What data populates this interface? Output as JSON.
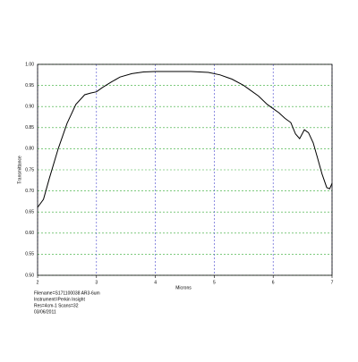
{
  "chart_data": {
    "type": "line",
    "x_label": "Microns",
    "y_label": "Transmittance",
    "x": [
      2.0,
      2.1,
      2.2,
      2.35,
      2.5,
      2.65,
      2.8,
      2.9,
      3.0,
      3.1,
      3.25,
      3.4,
      3.6,
      3.8,
      4.0,
      4.3,
      4.6,
      4.9,
      5.1,
      5.3,
      5.5,
      5.6,
      5.75,
      5.9,
      6.0,
      6.1,
      6.2,
      6.3,
      6.38,
      6.45,
      6.53,
      6.6,
      6.68,
      6.75,
      6.83,
      6.91,
      6.96,
      7.0
    ],
    "series": [
      {
        "name": "Transmittance",
        "color": "#000000",
        "values": [
          0.661,
          0.68,
          0.73,
          0.8,
          0.86,
          0.905,
          0.928,
          0.932,
          0.935,
          0.945,
          0.958,
          0.97,
          0.978,
          0.982,
          0.983,
          0.983,
          0.983,
          0.981,
          0.975,
          0.965,
          0.95,
          0.94,
          0.925,
          0.905,
          0.895,
          0.885,
          0.872,
          0.862,
          0.835,
          0.824,
          0.845,
          0.838,
          0.814,
          0.78,
          0.74,
          0.708,
          0.705,
          0.718
        ]
      }
    ],
    "xlim": [
      2,
      7
    ],
    "xticks": [
      2,
      3,
      4,
      5,
      6,
      7
    ],
    "ylim": [
      0.5,
      1.0
    ],
    "yticks": [
      {
        "value": 0.5,
        "label": "0.50"
      },
      {
        "value": 0.55,
        "label": "0.55"
      },
      {
        "value": 0.6,
        "label": "0.60"
      },
      {
        "value": 0.65,
        "label": "0.65"
      },
      {
        "value": 0.7,
        "label": "0.70"
      },
      {
        "value": 0.75,
        "label": "0.75"
      },
      {
        "value": 0.8,
        "label": "0.80"
      },
      {
        "value": 0.85,
        "label": "0.85"
      },
      {
        "value": 0.9,
        "label": "0.90"
      },
      {
        "value": 0.95,
        "label": "0.95"
      },
      {
        "value": 1.0,
        "label": "1.00"
      }
    ],
    "grid": true,
    "annotations": [
      "Filename=S171100038 AR3-6um",
      "Instrument=Perkin Insight",
      "Res=4cm-1 Scans=32",
      "03/06/2011"
    ]
  }
}
